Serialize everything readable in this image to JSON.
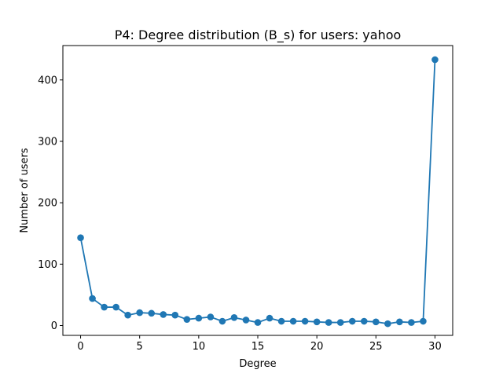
{
  "chart_data": {
    "type": "line",
    "title": "P4: Degree distribution (B_s) for users: yahoo",
    "xlabel": "Degree",
    "ylabel": "Number of users",
    "xlim": [
      -1.5,
      31.5
    ],
    "ylim": [
      -16,
      456
    ],
    "xticks": [
      0,
      5,
      10,
      15,
      20,
      25,
      30
    ],
    "yticks": [
      0,
      100,
      200,
      300,
      400
    ],
    "grid": false,
    "marker": "circle",
    "color": "#1f77b4",
    "series": [
      {
        "x": [
          0,
          1,
          2,
          3,
          4,
          5,
          6,
          7,
          8,
          9,
          10,
          11,
          12,
          13,
          14,
          15,
          16,
          17,
          18,
          19,
          20,
          21,
          22,
          23,
          24,
          25,
          26,
          27,
          28,
          29,
          30
        ],
        "values": [
          143,
          44,
          30,
          30,
          17,
          21,
          20,
          18,
          17,
          10,
          12,
          14,
          7,
          13,
          9,
          5,
          12,
          7,
          7,
          7,
          6,
          5,
          5,
          7,
          7,
          6,
          3,
          6,
          5,
          7,
          433
        ]
      }
    ]
  }
}
